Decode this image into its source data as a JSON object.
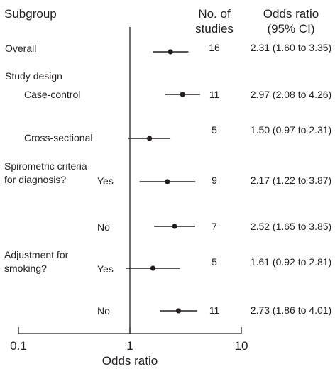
{
  "headers": {
    "subgroup": "Subgroup",
    "studies_line1": "No. of",
    "studies_line2": "studies",
    "or_line1": "Odds ratio",
    "or_line2": "(95% CI)"
  },
  "labels": {
    "overall": "Overall",
    "study_design": "Study design",
    "case_control": "Case-control",
    "cross_sectional": "Cross-sectional",
    "spiro_line1": "Spirometric criteria",
    "spiro_line2": "for diagnosis?",
    "spiro_yes": "Yes",
    "spiro_no": "No",
    "adj_line1": "Adjustment for",
    "adj_line2": "smoking?",
    "adj_yes": "Yes",
    "adj_no": "No"
  },
  "chart_data": {
    "type": "forest",
    "xlabel": "Odds ratio",
    "xscale": "log",
    "xlim": [
      0.1,
      10
    ],
    "xticks": [
      "0.1",
      "1",
      "10"
    ],
    "reference_line": 1,
    "rows": [
      {
        "subgroup": "Overall",
        "studies": "16",
        "or": 2.31,
        "lo": 1.6,
        "hi": 3.35,
        "ci_text": "2.31 (1.60 to 3.35)"
      },
      {
        "subgroup": "Case-control",
        "studies": "11",
        "or": 2.97,
        "lo": 2.08,
        "hi": 4.26,
        "ci_text": "2.97 (2.08 to 4.26)"
      },
      {
        "subgroup": "Cross-sectional",
        "studies": "5",
        "or": 1.5,
        "lo": 0.97,
        "hi": 2.31,
        "ci_text": "1.50 (0.97 to 2.31)"
      },
      {
        "subgroup": "Spirometric criteria for diagnosis? Yes",
        "studies": "9",
        "or": 2.17,
        "lo": 1.22,
        "hi": 3.87,
        "ci_text": "2.17 (1.22 to 3.87)"
      },
      {
        "subgroup": "Spirometric criteria for diagnosis? No",
        "studies": "7",
        "or": 2.52,
        "lo": 1.65,
        "hi": 3.85,
        "ci_text": "2.52 (1.65 to 3.85)"
      },
      {
        "subgroup": "Adjustment for smoking? Yes",
        "studies": "5",
        "or": 1.61,
        "lo": 0.92,
        "hi": 2.81,
        "ci_text": "1.61 (0.92 to 2.81)"
      },
      {
        "subgroup": "Adjustment for smoking? No",
        "studies": "11",
        "or": 2.73,
        "lo": 1.86,
        "hi": 4.01,
        "ci_text": "2.73 (1.86 to 4.01)"
      }
    ]
  }
}
